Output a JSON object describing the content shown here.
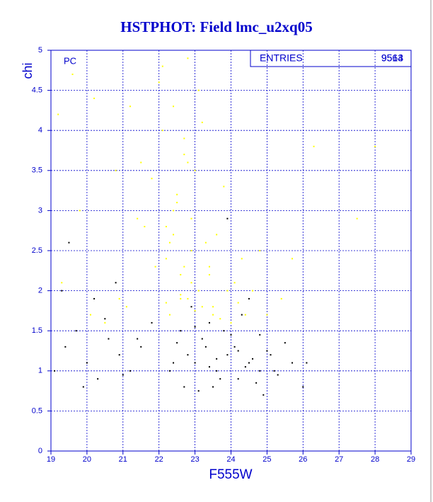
{
  "chart_data": {
    "type": "scatter",
    "title": "HSTPHOT: Field lmc_u2xq05",
    "x_label": "F555W",
    "y_label": "chi",
    "annotation": "PC",
    "stats": {
      "label": "ENTRIES",
      "values": [
        "9564",
        "9513"
      ]
    },
    "xlim": [
      19,
      29
    ],
    "ylim": [
      0,
      5
    ],
    "xticks": [
      19,
      20,
      21,
      22,
      23,
      24,
      25,
      26,
      27,
      28,
      29
    ],
    "yticks": [
      0,
      0.5,
      1,
      1.5,
      2,
      2.5,
      3,
      3.5,
      4,
      4.5,
      5
    ],
    "grid": true,
    "series": [
      {
        "color": "#ffff00",
        "x": [
          22.1,
          22.4,
          22.7,
          23.0,
          22.5,
          22.9,
          23.3,
          22.2,
          22.6,
          23.1,
          22.8,
          23.5,
          22.3,
          22.0,
          23.2,
          22.7,
          23.8,
          22.4,
          21.6,
          22.9,
          23.4,
          24.1,
          22.6,
          22.2,
          23.0,
          21.8,
          22.5,
          23.6,
          24.3,
          22.8,
          23.1,
          22.3,
          21.4,
          20.8,
          20.2,
          19.6,
          19.3,
          21.1,
          20.5,
          24.6,
          25.0,
          25.4,
          24.8,
          26.3,
          27.5,
          28.0,
          19.2,
          19.8,
          21.9,
          22.1,
          22.8,
          23.4,
          23.9,
          24.4,
          23.7,
          22.6,
          22.9,
          23.2,
          22.4,
          22.7,
          21.5,
          20.9,
          23.0,
          24.0,
          23.5,
          22.2,
          25.7,
          24.2,
          21.2,
          20.1
        ],
        "values": [
          4.8,
          4.3,
          3.9,
          3.5,
          3.2,
          2.9,
          2.6,
          2.4,
          2.2,
          2.0,
          1.9,
          1.8,
          1.7,
          4.6,
          4.1,
          3.7,
          3.3,
          3.0,
          2.8,
          2.5,
          2.3,
          2.1,
          1.95,
          1.85,
          1.75,
          3.4,
          3.1,
          2.7,
          2.4,
          4.9,
          4.5,
          2.6,
          2.9,
          3.5,
          4.4,
          4.7,
          2.1,
          1.8,
          1.6,
          2.0,
          1.7,
          1.9,
          2.5,
          3.8,
          2.9,
          3.8,
          4.2,
          3.0,
          2.3,
          4.0,
          3.6,
          2.2,
          2.0,
          1.7,
          1.65,
          1.9,
          2.1,
          1.8,
          2.7,
          2.3,
          3.6,
          1.9,
          1.55,
          1.6,
          1.7,
          2.8,
          2.4,
          1.85,
          4.3,
          1.7
        ]
      },
      {
        "color": "#000000",
        "x": [
          23.0,
          23.3,
          23.6,
          23.9,
          24.2,
          24.5,
          24.8,
          25.1,
          23.2,
          23.5,
          23.8,
          24.1,
          24.4,
          24.7,
          25.0,
          22.8,
          22.5,
          22.3,
          23.4,
          24.0,
          24.6,
          25.3,
          25.7,
          26.0,
          23.1,
          23.7,
          24.3,
          24.9,
          22.6,
          22.9,
          19.1,
          19.4,
          19.7,
          20.0,
          20.3,
          20.6,
          20.9,
          21.2,
          21.5,
          21.8,
          19.5,
          20.2,
          20.8,
          21.4,
          19.3,
          23.6,
          24.2,
          23.0,
          25.5,
          22.4,
          24.8,
          23.9,
          21.0,
          19.9,
          26.1,
          23.4,
          24.5,
          22.7,
          20.5,
          25.2
        ],
        "values": [
          1.1,
          1.3,
          1.0,
          1.2,
          0.9,
          1.1,
          1.0,
          1.2,
          1.4,
          0.8,
          1.5,
          1.3,
          1.05,
          0.85,
          1.25,
          1.2,
          1.35,
          1.0,
          1.6,
          1.45,
          1.15,
          0.95,
          1.1,
          0.8,
          0.75,
          0.9,
          1.7,
          0.7,
          1.5,
          1.8,
          1.0,
          1.3,
          1.5,
          1.1,
          0.9,
          1.4,
          1.2,
          1.0,
          1.3,
          1.6,
          2.6,
          1.9,
          2.1,
          1.4,
          2.0,
          1.15,
          1.25,
          1.55,
          1.35,
          1.1,
          1.45,
          2.9,
          0.95,
          0.8,
          1.1,
          1.05,
          1.9,
          0.8,
          1.65,
          1.0
        ]
      }
    ]
  }
}
